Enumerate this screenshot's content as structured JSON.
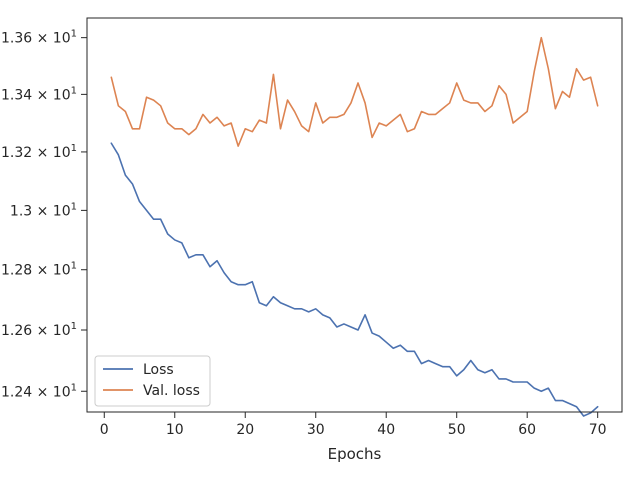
{
  "chart_data": {
    "type": "line",
    "title": "",
    "xlabel": "Epochs",
    "ylabel": "",
    "xlim": [
      -2.45,
      73.45
    ],
    "ylim": [
      12.333,
      13.67
    ],
    "y_scale": "log",
    "grid": false,
    "legend_position": "lower-left",
    "x_ticks": [
      {
        "value": 0,
        "label": "0"
      },
      {
        "value": 10,
        "label": "10"
      },
      {
        "value": 20,
        "label": "20"
      },
      {
        "value": 30,
        "label": "30"
      },
      {
        "value": 40,
        "label": "40"
      },
      {
        "value": 50,
        "label": "50"
      },
      {
        "value": 60,
        "label": "60"
      },
      {
        "value": 70,
        "label": "70"
      }
    ],
    "y_ticks": [
      {
        "value": 12.4,
        "base": "1.24",
        "exp": "1"
      },
      {
        "value": 12.6,
        "base": "1.26",
        "exp": "1"
      },
      {
        "value": 12.8,
        "base": "1.28",
        "exp": "1"
      },
      {
        "value": 13.0,
        "base": "1.3",
        "exp": "1"
      },
      {
        "value": 13.2,
        "base": "1.32",
        "exp": "1"
      },
      {
        "value": 13.4,
        "base": "1.34",
        "exp": "1"
      },
      {
        "value": 13.6,
        "base": "1.36",
        "exp": "1"
      }
    ],
    "x": [
      1,
      2,
      3,
      4,
      5,
      6,
      7,
      8,
      9,
      10,
      11,
      12,
      13,
      14,
      15,
      16,
      17,
      18,
      19,
      20,
      21,
      22,
      23,
      24,
      25,
      26,
      27,
      28,
      29,
      30,
      31,
      32,
      33,
      34,
      35,
      36,
      37,
      38,
      39,
      40,
      41,
      42,
      43,
      44,
      45,
      46,
      47,
      48,
      49,
      50,
      51,
      52,
      53,
      54,
      55,
      56,
      57,
      58,
      59,
      60,
      61,
      62,
      63,
      64,
      65,
      66,
      67,
      68,
      69,
      70
    ],
    "series": [
      {
        "name": "Loss",
        "color": "#4c72b0",
        "values": [
          13.23,
          13.19,
          13.12,
          13.09,
          13.03,
          13.0,
          12.97,
          12.97,
          12.92,
          12.9,
          12.89,
          12.84,
          12.85,
          12.85,
          12.81,
          12.83,
          12.79,
          12.76,
          12.75,
          12.75,
          12.76,
          12.69,
          12.68,
          12.71,
          12.69,
          12.68,
          12.67,
          12.67,
          12.66,
          12.67,
          12.65,
          12.64,
          12.61,
          12.62,
          12.61,
          12.6,
          12.65,
          12.59,
          12.58,
          12.56,
          12.54,
          12.55,
          12.53,
          12.53,
          12.49,
          12.5,
          12.49,
          12.48,
          12.48,
          12.45,
          12.47,
          12.5,
          12.47,
          12.46,
          12.47,
          12.44,
          12.44,
          12.43,
          12.43,
          12.43,
          12.41,
          12.4,
          12.41,
          12.37,
          12.37,
          12.36,
          12.35,
          12.32,
          12.33,
          12.35
        ]
      },
      {
        "name": "Val. loss",
        "color": "#dd8452",
        "values": [
          13.46,
          13.36,
          13.34,
          13.28,
          13.28,
          13.39,
          13.38,
          13.36,
          13.3,
          13.28,
          13.28,
          13.26,
          13.28,
          13.33,
          13.3,
          13.32,
          13.29,
          13.3,
          13.22,
          13.28,
          13.27,
          13.31,
          13.3,
          13.47,
          13.28,
          13.38,
          13.34,
          13.29,
          13.27,
          13.37,
          13.3,
          13.32,
          13.32,
          13.33,
          13.37,
          13.44,
          13.37,
          13.25,
          13.3,
          13.29,
          13.31,
          13.33,
          13.27,
          13.28,
          13.34,
          13.33,
          13.33,
          13.35,
          13.37,
          13.44,
          13.38,
          13.37,
          13.37,
          13.34,
          13.36,
          13.43,
          13.4,
          13.3,
          13.32,
          13.34,
          13.48,
          13.6,
          13.49,
          13.35,
          13.41,
          13.39,
          13.49,
          13.45,
          13.46,
          13.36
        ]
      }
    ]
  }
}
